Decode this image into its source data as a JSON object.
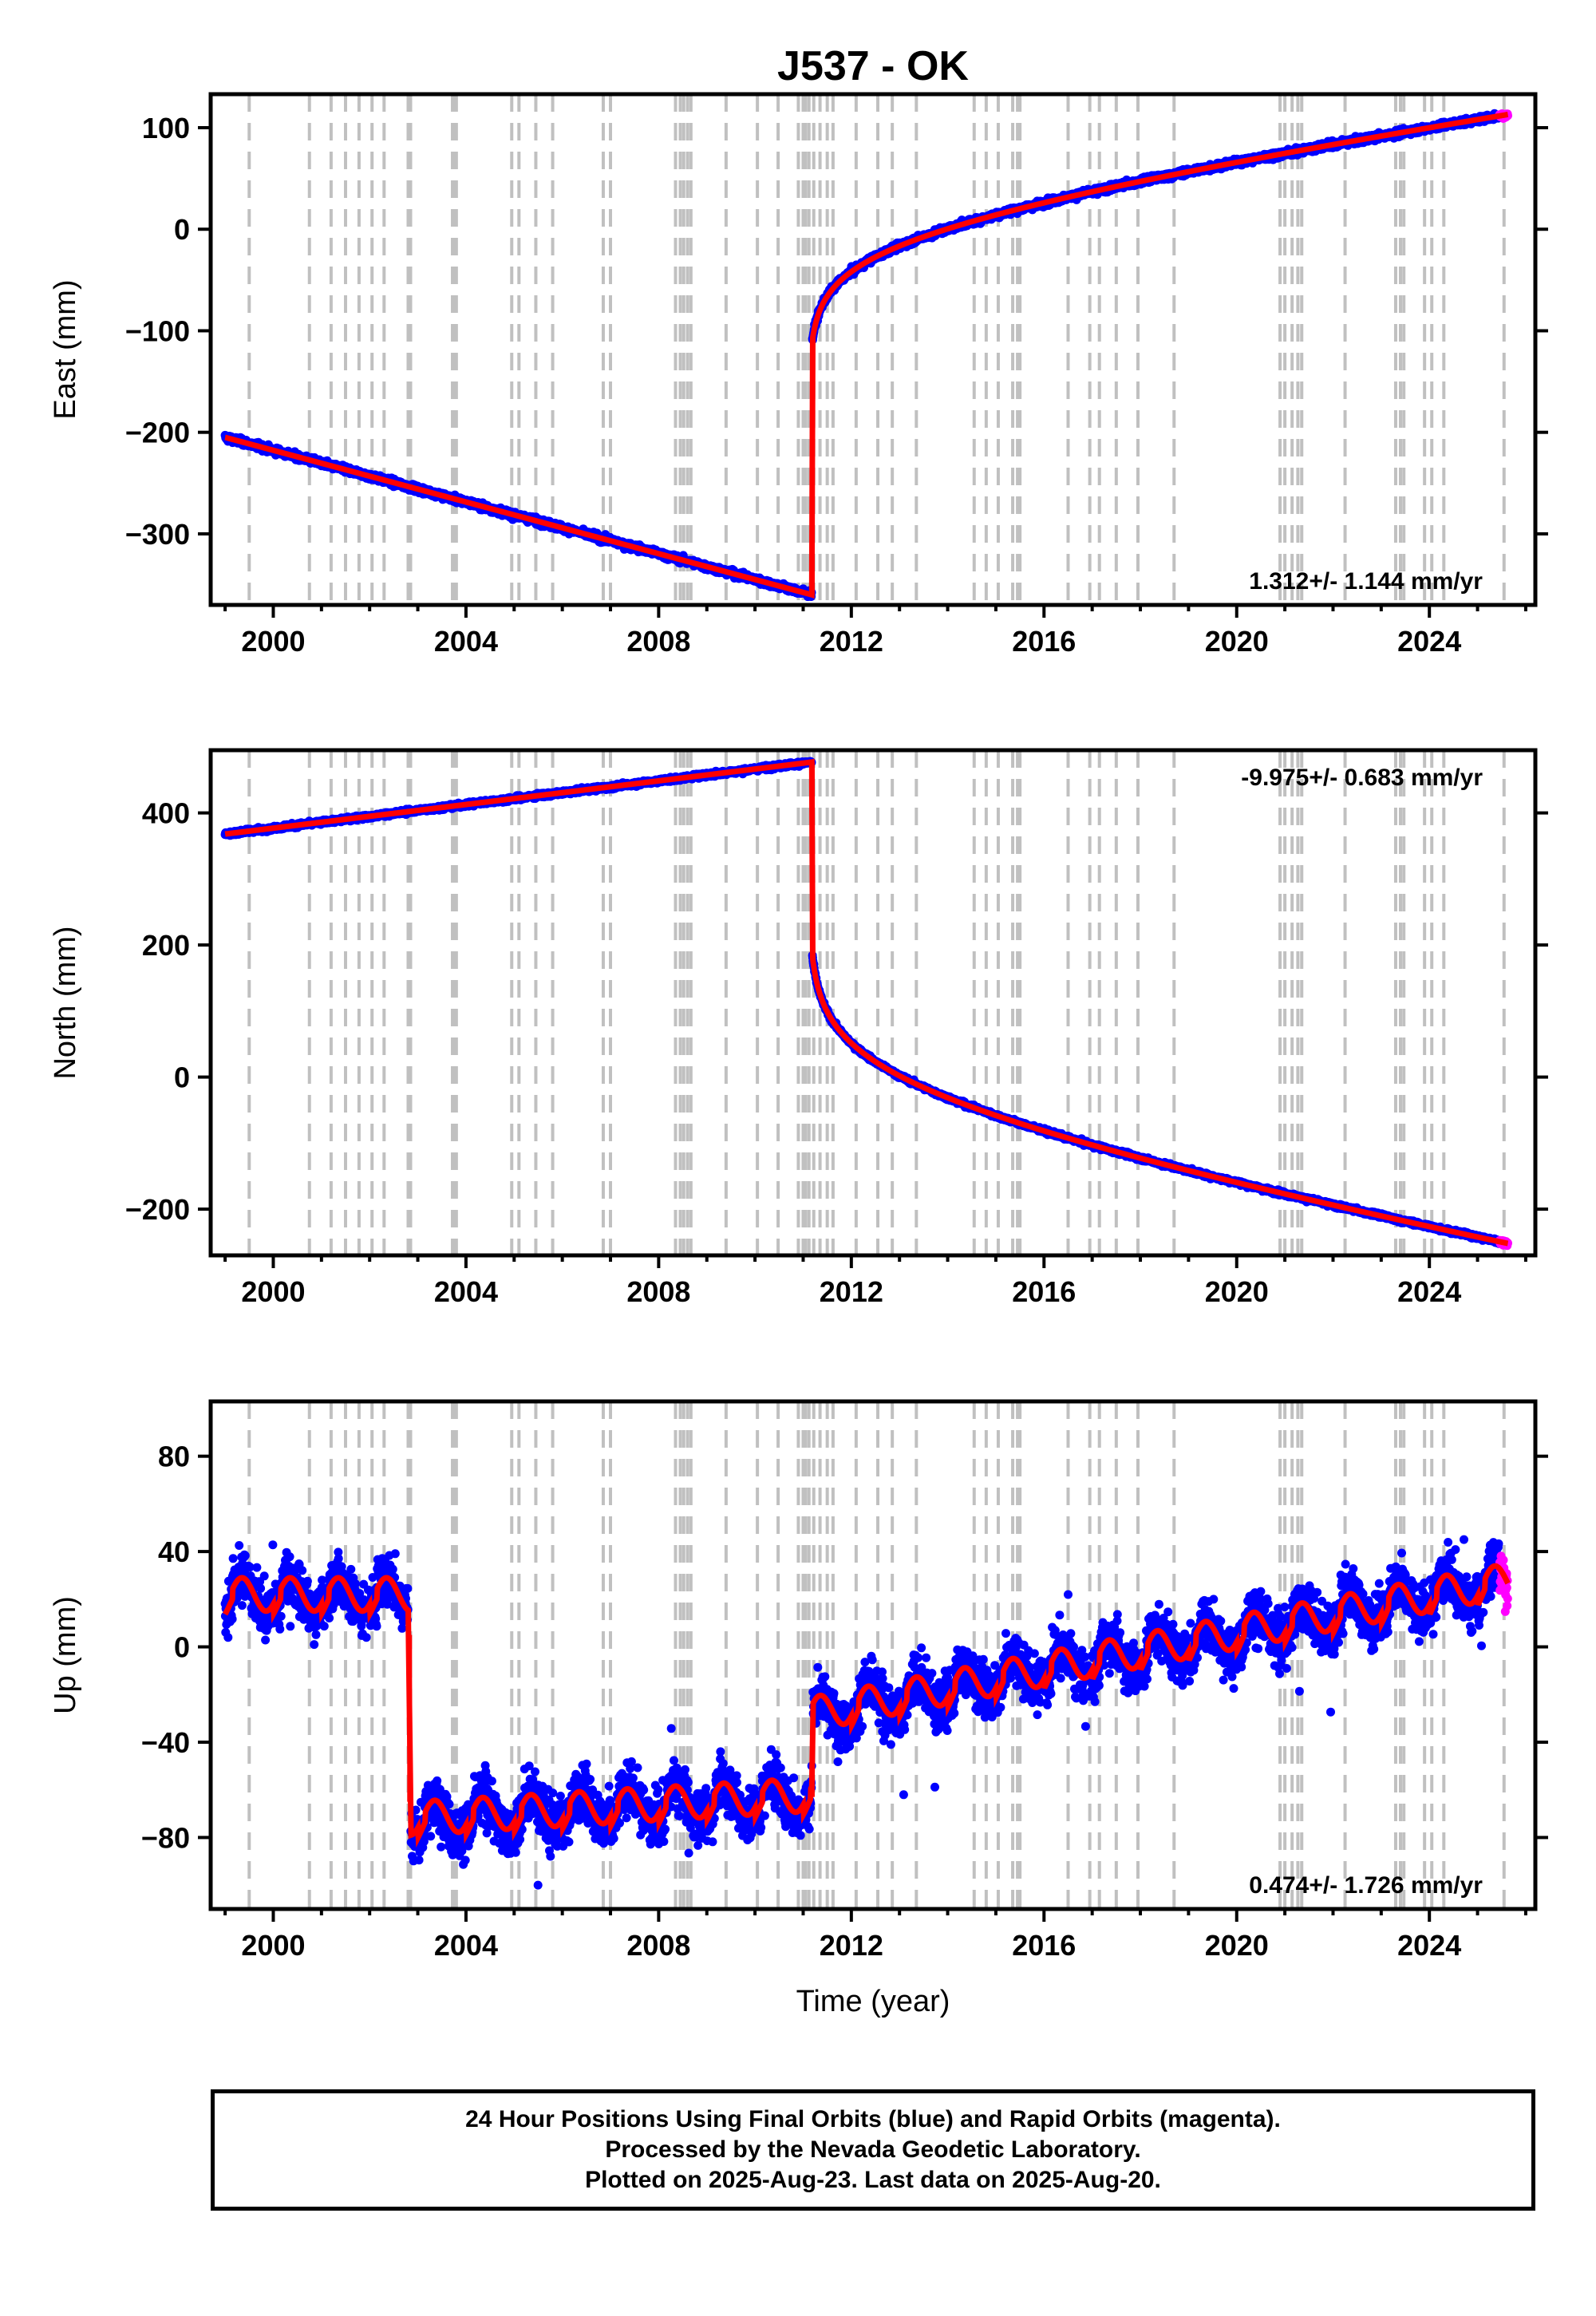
{
  "title": "J537 - OK",
  "x_axis_label": "Time (year)",
  "x_ticks": [
    "2000",
    "2004",
    "2008",
    "2012",
    "2016",
    "2020",
    "2024"
  ],
  "footer": {
    "line1": "24 Hour Positions Using Final Orbits (blue) and Rapid Orbits (magenta).",
    "line2": "Processed by the Nevada Geodetic Laboratory.",
    "line3": "Plotted on 2025-Aug-23. Last data on 2025-Aug-20."
  },
  "colors": {
    "final_orbits": "#0000ff",
    "rapid_orbits": "#ff00ff",
    "model": "#ff0000",
    "event_lines": "#c0c0c0"
  },
  "chart_data": [
    {
      "type": "scatter",
      "panel": "east",
      "ylabel": "East (mm)",
      "xlim": [
        1998.7,
        2026.2
      ],
      "ylim": [
        -370,
        133
      ],
      "y_ticks": [
        100,
        0,
        -100,
        -200,
        -300
      ],
      "rate_text": "1.312+/- 1.144 mm/yr",
      "rate_position": "bottom-right",
      "grid": false,
      "segments": [
        {
          "type": "linear",
          "x0": 1999.0,
          "x1": 2011.18,
          "y0": -205,
          "y1": -360
        },
        {
          "type": "step",
          "x": 2011.19,
          "y_from": -360,
          "y_to": -110
        },
        {
          "type": "postseismic",
          "x0": 2011.19,
          "x1": 2025.63,
          "y0": -110,
          "y1": 113
        }
      ],
      "series": [
        {
          "name": "Final Orbits",
          "color": "#0000ff",
          "x_range": [
            1999.0,
            2025.45
          ]
        },
        {
          "name": "Rapid Orbits",
          "color": "#ff00ff",
          "x_range": [
            2025.45,
            2025.63
          ]
        }
      ]
    },
    {
      "type": "scatter",
      "panel": "north",
      "ylabel": "North (mm)",
      "xlim": [
        1998.7,
        2026.2
      ],
      "ylim": [
        -270,
        495
      ],
      "y_ticks": [
        400,
        200,
        0,
        -200
      ],
      "rate_text": "-9.975+/- 0.683 mm/yr",
      "rate_position": "top-right",
      "grid": false,
      "segments": [
        {
          "type": "linear",
          "x0": 1999.0,
          "x1": 2011.18,
          "y0": 368,
          "y1": 477
        },
        {
          "type": "step",
          "x": 2011.19,
          "y_from": 477,
          "y_to": 185
        },
        {
          "type": "postseismic",
          "x0": 2011.19,
          "x1": 2025.63,
          "y0": 185,
          "y1": -252
        }
      ],
      "series": [
        {
          "name": "Final Orbits",
          "color": "#0000ff",
          "x_range": [
            1999.0,
            2025.45
          ]
        },
        {
          "name": "Rapid Orbits",
          "color": "#ff00ff",
          "x_range": [
            2025.45,
            2025.63
          ]
        }
      ]
    },
    {
      "type": "scatter",
      "panel": "up",
      "ylabel": "Up (mm)",
      "xlim": [
        1998.7,
        2026.2
      ],
      "ylim": [
        -110,
        103
      ],
      "y_ticks": [
        80,
        40,
        0,
        -40,
        -80
      ],
      "rate_text": "0.474+/- 1.726 mm/yr",
      "rate_position": "bottom-right",
      "grid": false,
      "segments": [
        {
          "type": "seasonal",
          "x0": 1999.0,
          "x1": 2002.8,
          "y0": 22,
          "y1": 22,
          "amplitude": 7
        },
        {
          "type": "step",
          "x": 2002.83,
          "y_from": 5,
          "y_to": -65
        },
        {
          "type": "seasonal",
          "x0": 2002.85,
          "x1": 2011.18,
          "y0": -72,
          "y1": -62,
          "amplitude": 7
        },
        {
          "type": "step",
          "x": 2011.19,
          "y_from": -63,
          "y_to": -35
        },
        {
          "type": "seasonal",
          "x0": 2011.2,
          "x1": 2025.63,
          "y0": -28,
          "y1": 28,
          "amplitude": 7
        }
      ],
      "series": [
        {
          "name": "Final Orbits",
          "color": "#0000ff",
          "x_range": [
            1999.0,
            2025.45
          ]
        },
        {
          "name": "Rapid Orbits",
          "color": "#ff00ff",
          "x_range": [
            2025.45,
            2025.63
          ]
        }
      ]
    }
  ],
  "event_lines_years": [
    1999.5,
    2000.75,
    2001.2,
    2001.5,
    2001.78,
    2002.05,
    2002.3,
    2002.8,
    2002.85,
    2003.72,
    2003.77,
    2003.8,
    2004.95,
    2005.1,
    2005.45,
    2005.8,
    2006.85,
    2007.0,
    2008.35,
    2008.45,
    2008.52,
    2008.6,
    2008.67,
    2009.4,
    2010.05,
    2010.48,
    2010.9,
    2011.0,
    2011.05,
    2011.12,
    2011.22,
    2011.35,
    2011.5,
    2011.62,
    2012.1,
    2012.55,
    2012.85,
    2013.35,
    2014.55,
    2014.8,
    2015.05,
    2015.35,
    2015.45,
    2015.5,
    2016.5,
    2016.95,
    2017.15,
    2017.5,
    2017.95,
    2018.7,
    2020.9,
    2021.0,
    2021.15,
    2021.27,
    2021.35,
    2022.25,
    2023.3,
    2023.4,
    2023.47,
    2023.9,
    2024.05,
    2024.3,
    2025.55
  ]
}
